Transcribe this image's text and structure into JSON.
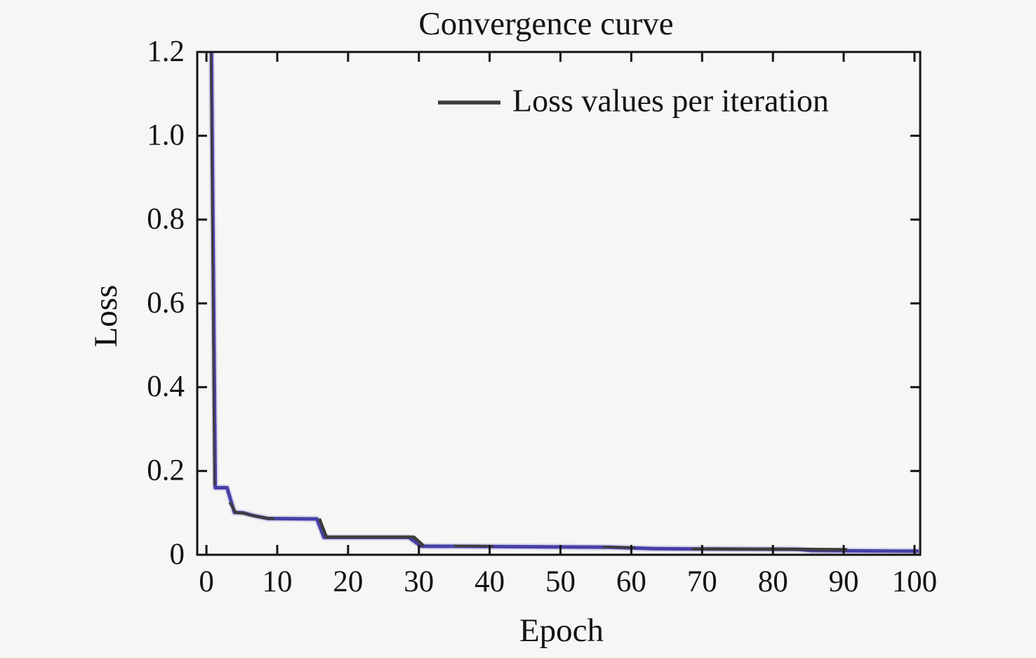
{
  "page": {
    "background": "#f6f6f4"
  },
  "chart_data": {
    "type": "line",
    "title": "Convergence curve",
    "xlabel": "Epoch",
    "ylabel": "Loss",
    "xlim": [
      -1.3,
      100.8
    ],
    "ylim": [
      0,
      1.2
    ],
    "xticks": [
      0,
      10,
      20,
      30,
      40,
      50,
      60,
      70,
      80,
      90,
      100
    ],
    "xtick_labels": [
      "0",
      "10",
      "20",
      "30",
      "40",
      "50",
      "60",
      "70",
      "80",
      "90",
      "100"
    ],
    "yticks": [
      0,
      0.2,
      0.4,
      0.6,
      0.8,
      1.0,
      1.2
    ],
    "ytick_labels": [
      "0",
      "0.2",
      "0.4",
      "0.6",
      "0.8",
      "1.0",
      "1.2"
    ],
    "grid": false,
    "box": true,
    "tick_direction": "in",
    "axis_color": "#141414",
    "background_color": "#f6f6f4",
    "legend": {
      "position": "upper-right",
      "border": false,
      "entries": [
        {
          "label": "Loss values per iteration",
          "line_color": "#3d3d3d"
        }
      ]
    },
    "series": [
      {
        "name": "Loss values per iteration",
        "role": "main-curve",
        "color": "#4840a8",
        "halo_color": "#8a80cc",
        "width": 5,
        "points": [
          [
            0.7,
            1.21
          ],
          [
            1.25,
            0.16
          ],
          [
            2.9,
            0.16
          ],
          [
            3.95,
            0.101
          ],
          [
            5.2,
            0.1
          ],
          [
            6.5,
            0.094
          ],
          [
            8.7,
            0.0865
          ],
          [
            15.6,
            0.0855
          ],
          [
            16.6,
            0.0415
          ],
          [
            28.6,
            0.0415
          ],
          [
            30.3,
            0.0205
          ],
          [
            38,
            0.02
          ],
          [
            48,
            0.019
          ],
          [
            57,
            0.018
          ],
          [
            60,
            0.0163
          ],
          [
            63,
            0.0148
          ],
          [
            68,
            0.014
          ],
          [
            83.5,
            0.013
          ],
          [
            85.5,
            0.01
          ],
          [
            93,
            0.0092
          ],
          [
            100.6,
            0.0085
          ]
        ]
      },
      {
        "name": "overlapping iteration-loss trace (dark gray, visible where curves coincide)",
        "role": "gray-overlap",
        "color": "#3d3d3d",
        "width": 4.5,
        "segments": [
          {
            "width": 3,
            "points": [
              [
                0.62,
                1.21
              ],
              [
                1.02,
                0.35
              ],
              [
                1.12,
                0.165
              ]
            ]
          },
          {
            "width": 4,
            "points": [
              [
                3.3,
                0.125
              ],
              [
                4.15,
                0.1005
              ],
              [
                5.1,
                0.0995
              ],
              [
                6.1,
                0.095
              ],
              [
                8.0,
                0.0885
              ],
              [
                9.6,
                0.0862
              ]
            ]
          },
          {
            "width": 4.5,
            "points": [
              [
                15.95,
                0.086
              ],
              [
                16.95,
                0.0422
              ],
              [
                29.3,
                0.0422
              ],
              [
                30.7,
                0.0208
              ]
            ]
          },
          {
            "width": 3.5,
            "points": [
              [
                35,
                0.0213
              ],
              [
                40.5,
                0.0205
              ]
            ]
          },
          {
            "width": 3.5,
            "points": [
              [
                56,
                0.0186
              ],
              [
                60.5,
                0.017
              ]
            ]
          },
          {
            "width": 4.5,
            "points": [
              [
                68.5,
                0.0139
              ],
              [
                83.8,
                0.0133
              ],
              [
                90.5,
                0.0122
              ]
            ]
          }
        ]
      }
    ]
  }
}
